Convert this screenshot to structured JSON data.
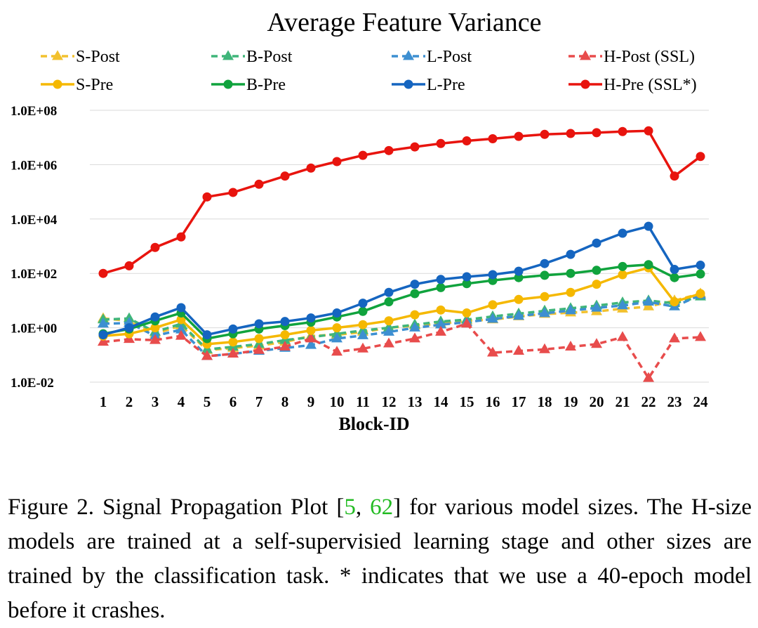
{
  "chart_data": {
    "type": "line",
    "title": "Average Feature Variance",
    "xlabel": "Block-ID",
    "ylabel": "",
    "yscale": "log",
    "ylim": [
      0.01,
      100000000
    ],
    "yticks": [
      {
        "value": 0.01,
        "label": "1.0E-02"
      },
      {
        "value": 1,
        "label": "1.0E+00"
      },
      {
        "value": 100,
        "label": "1.0E+02"
      },
      {
        "value": 10000,
        "label": "1.0E+04"
      },
      {
        "value": 1000000,
        "label": "1.0E+06"
      },
      {
        "value": 100000000,
        "label": "1.0E+08"
      }
    ],
    "x": [
      1,
      2,
      3,
      4,
      5,
      6,
      7,
      8,
      9,
      10,
      11,
      12,
      13,
      14,
      15,
      16,
      17,
      18,
      19,
      20,
      21,
      22,
      23,
      24
    ],
    "series": [
      {
        "name": "S-Post",
        "color": "#F2C12E",
        "dashed": true,
        "marker": "triangle",
        "values": [
          2.2,
          1.8,
          0.6,
          1.2,
          0.15,
          0.18,
          0.22,
          0.3,
          0.5,
          0.55,
          0.7,
          1.0,
          1.2,
          1.4,
          1.8,
          2.0,
          2.6,
          3.2,
          3.6,
          4.0,
          5.0,
          6.0,
          10,
          18
        ]
      },
      {
        "name": "B-Post",
        "color": "#3FB57A",
        "dashed": true,
        "marker": "triangle",
        "values": [
          2.0,
          2.2,
          0.7,
          1.4,
          0.16,
          0.2,
          0.25,
          0.35,
          0.45,
          0.6,
          0.8,
          1.0,
          1.3,
          1.7,
          2.0,
          2.6,
          3.3,
          4.2,
          5.2,
          6.5,
          8.5,
          10,
          8,
          14
        ]
      },
      {
        "name": "L-Post",
        "color": "#3D8FD1",
        "dashed": true,
        "marker": "triangle",
        "values": [
          1.4,
          1.5,
          0.5,
          0.85,
          0.09,
          0.11,
          0.14,
          0.18,
          0.23,
          0.4,
          0.52,
          0.7,
          1.0,
          1.3,
          1.6,
          2.1,
          2.7,
          3.4,
          4.3,
          5.4,
          6.6,
          9,
          6,
          16
        ]
      },
      {
        "name": "H-Post (SSL)",
        "color": "#E84C4C",
        "dashed": true,
        "marker": "triangle",
        "values": [
          0.3,
          0.38,
          0.35,
          0.5,
          0.09,
          0.11,
          0.15,
          0.2,
          0.4,
          0.13,
          0.17,
          0.26,
          0.4,
          0.7,
          1.4,
          0.12,
          0.14,
          0.16,
          0.2,
          0.25,
          0.45,
          0.014,
          0.4,
          0.45
        ]
      },
      {
        "name": "S-Pre",
        "color": "#F5B800",
        "dashed": false,
        "marker": "circle",
        "values": [
          0.5,
          0.6,
          1.0,
          2.0,
          0.25,
          0.3,
          0.4,
          0.55,
          0.8,
          1.0,
          1.3,
          1.8,
          3.0,
          4.5,
          3.5,
          7,
          11,
          14,
          20,
          40,
          90,
          160,
          9,
          18
        ]
      },
      {
        "name": "B-Pre",
        "color": "#10A33D",
        "dashed": false,
        "marker": "circle",
        "values": [
          0.6,
          0.9,
          1.8,
          3.5,
          0.4,
          0.6,
          0.9,
          1.2,
          1.6,
          2.5,
          4,
          9,
          18,
          30,
          42,
          55,
          70,
          85,
          100,
          130,
          180,
          210,
          70,
          95
        ]
      },
      {
        "name": "L-Pre",
        "color": "#1565C0",
        "dashed": false,
        "marker": "circle",
        "values": [
          0.55,
          1.0,
          2.5,
          5.5,
          0.55,
          0.9,
          1.4,
          1.7,
          2.3,
          3.5,
          8,
          20,
          40,
          60,
          75,
          90,
          120,
          230,
          500,
          1300,
          3000,
          5400,
          140,
          200
        ]
      },
      {
        "name": "H-Pre (SSL*)",
        "color": "#E8140E",
        "dashed": false,
        "marker": "circle",
        "values": [
          100,
          190,
          900,
          2200,
          65000,
          95000,
          190000,
          380000,
          750000,
          1300000,
          2200000,
          3300000,
          4500000,
          6000000,
          7500000,
          9000000,
          11000000,
          13000000,
          14000000,
          15000000,
          16500000,
          17500000,
          380000,
          2000000
        ]
      }
    ]
  },
  "caption": {
    "prefix": "Figure 2. Signal Propagation Plot [",
    "cite1": "5",
    "sep": ", ",
    "cite2": "62",
    "suffix": "] for various model sizes. The H-size models are trained at a self-supervisied learning stage and other sizes are trained by the classification task.  * indicates that we use a 40-epoch model before it crashes."
  }
}
